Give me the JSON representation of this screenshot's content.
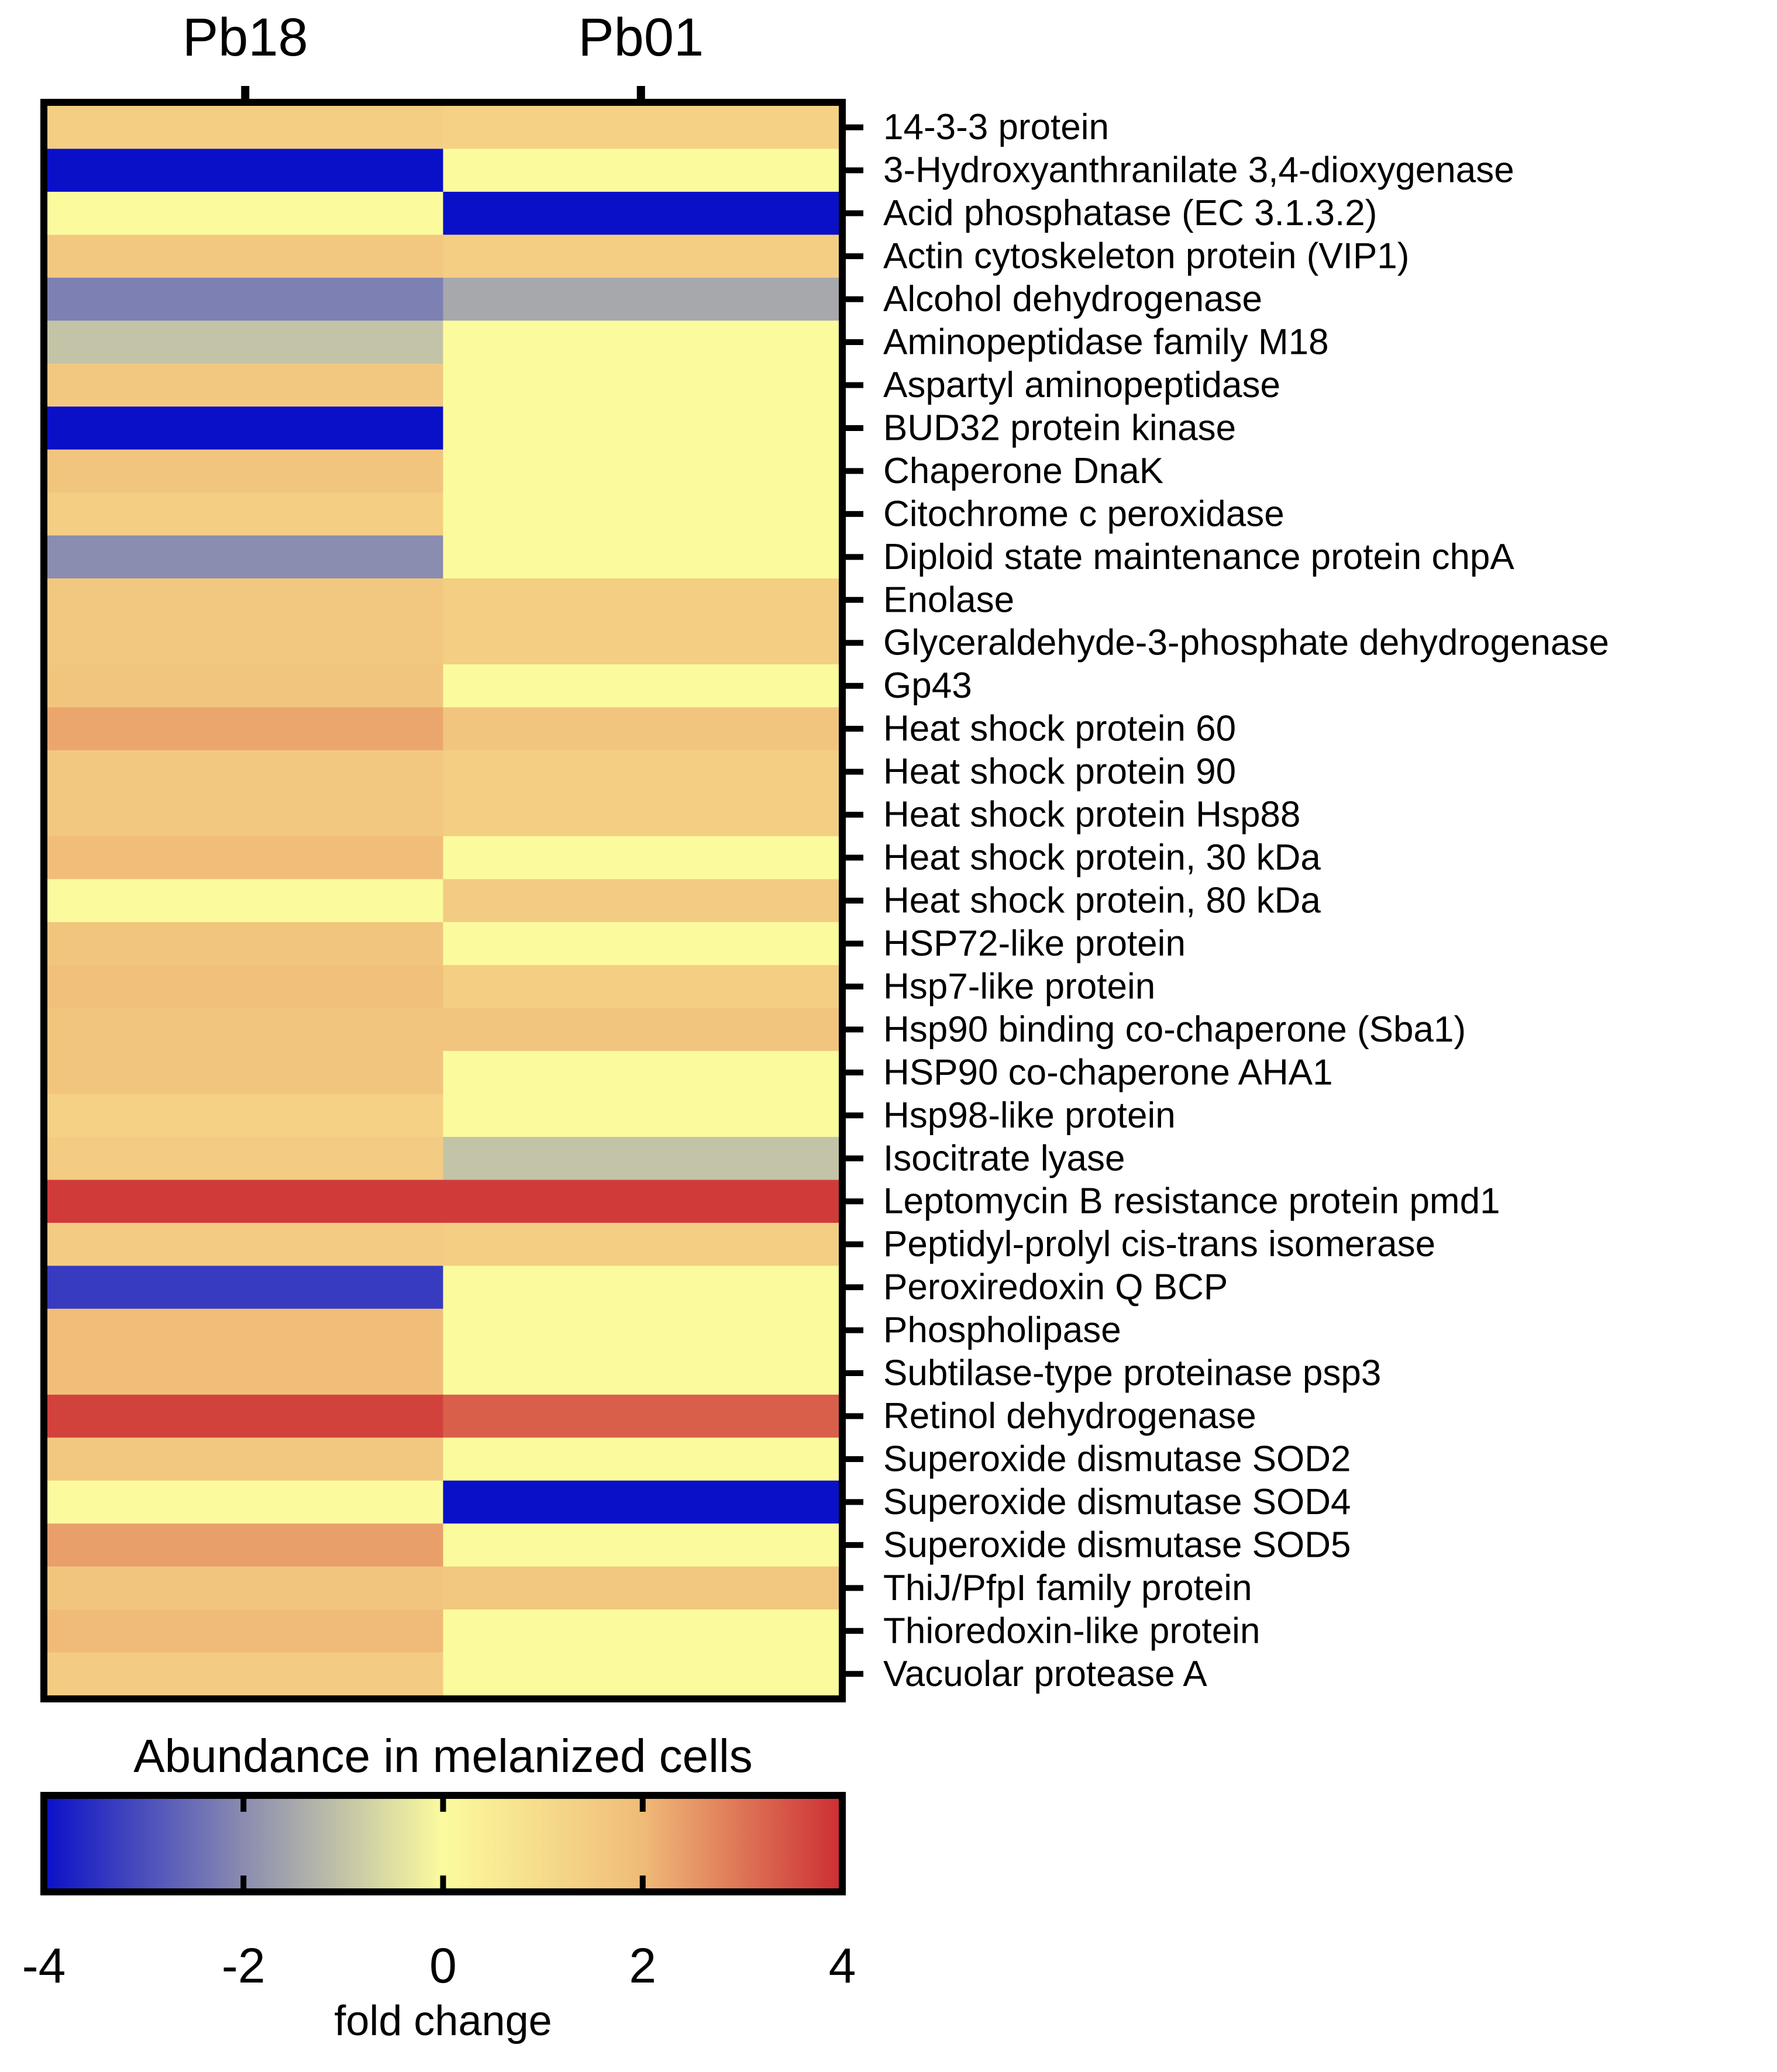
{
  "chart_data": {
    "type": "heatmap",
    "columns": [
      "Pb18",
      "Pb01"
    ],
    "rows": [
      "14-3-3 protein",
      "3-Hydroxyanthranilate 3,4-dioxygenase",
      "Acid phosphatase (EC 3.1.3.2)",
      "Actin cytoskeleton protein (VIP1)",
      "Alcohol dehydrogenase",
      "Aminopeptidase family M18",
      "Aspartyl aminopeptidase",
      "BUD32 protein kinase",
      "Chaperone DnaK",
      "Citochrome c peroxidase",
      "Diploid state maintenance protein chpA",
      "Enolase",
      "Glyceraldehyde-3-phosphate dehydrogenase",
      "Gp43",
      "Heat shock protein 60",
      "Heat shock protein 90",
      "Heat shock protein Hsp88",
      "Heat shock protein, 30 kDa",
      "Heat shock protein, 80 kDa",
      "HSP72-like protein",
      "Hsp7-like protein",
      "Hsp90 binding co-chaperone (Sba1)",
      "HSP90 co-chaperone AHA1",
      "Hsp98-like protein",
      "Isocitrate lyase",
      "Leptomycin B resistance protein pmd1",
      "Peptidyl-prolyl cis-trans isomerase",
      "Peroxiredoxin Q BCP",
      "Phospholipase",
      "Subtilase-type proteinase psp3",
      "Retinol dehydrogenase",
      "Superoxide dismutase SOD2",
      "Superoxide dismutase SOD4",
      "Superoxide dismutase SOD5",
      "ThiJ/PfpI family protein",
      "Thioredoxin-like protein",
      "Vacuolar protease A"
    ],
    "values": [
      [
        1.4,
        1.3
      ],
      [
        -4.0,
        0.0
      ],
      [
        0.0,
        -4.0
      ],
      [
        1.6,
        1.4
      ],
      [
        -2.2,
        -1.5
      ],
      [
        -1.0,
        0.0
      ],
      [
        1.6,
        0.0
      ],
      [
        -4.0,
        0.0
      ],
      [
        1.7,
        0.0
      ],
      [
        1.4,
        0.0
      ],
      [
        -2.0,
        0.0
      ],
      [
        1.6,
        1.4
      ],
      [
        1.6,
        1.4
      ],
      [
        1.7,
        0.0
      ],
      [
        2.3,
        1.7
      ],
      [
        1.6,
        1.4
      ],
      [
        1.6,
        1.4
      ],
      [
        1.9,
        0.0
      ],
      [
        0.0,
        1.5
      ],
      [
        1.7,
        0.0
      ],
      [
        1.8,
        1.4
      ],
      [
        1.7,
        1.7
      ],
      [
        1.7,
        0.0
      ],
      [
        1.3,
        0.0
      ],
      [
        1.5,
        -1.0
      ],
      [
        3.8,
        3.8
      ],
      [
        1.5,
        1.4
      ],
      [
        -3.3,
        0.0
      ],
      [
        1.9,
        0.0
      ],
      [
        1.9,
        0.0
      ],
      [
        3.7,
        3.3
      ],
      [
        1.6,
        0.0
      ],
      [
        0.0,
        -4.0
      ],
      [
        2.4,
        0.0
      ],
      [
        1.7,
        1.6
      ],
      [
        2.0,
        0.0
      ],
      [
        1.5,
        0.0
      ]
    ],
    "colorbar": {
      "title": "Abundance in melanized cells",
      "xlabel": "fold change",
      "range": [
        -4,
        4
      ],
      "ticks": [
        -4,
        -2,
        0,
        2,
        4
      ],
      "tick_labels": [
        "-4",
        "-2",
        "0",
        "2",
        "4"
      ],
      "colors": [
        "#0a10c8",
        "#8a8cb0",
        "#fbfb9e",
        "#f0bb78",
        "#cc2d33"
      ]
    }
  }
}
